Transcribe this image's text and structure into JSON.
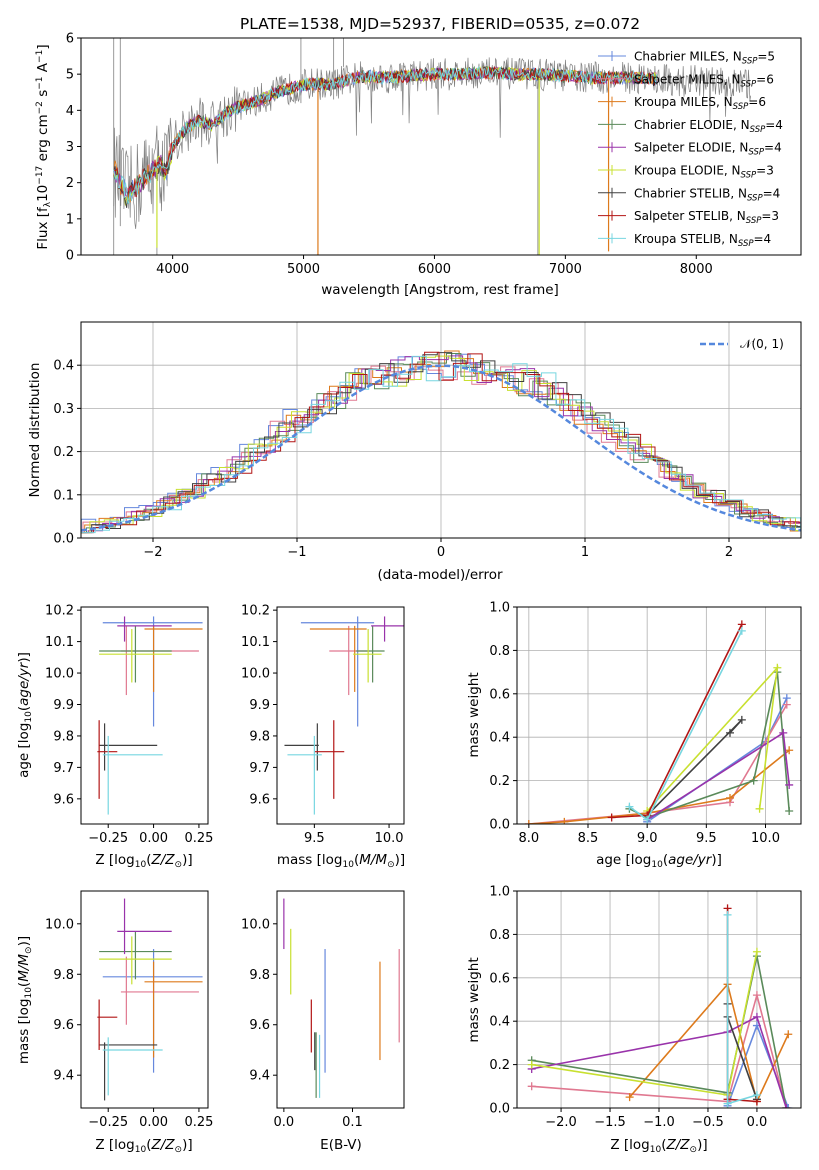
{
  "colors": {
    "Chabrier MILES": "#6688dd",
    "Salpeter MILES": "#e07890",
    "Kroupa MILES": "#dd7a1c",
    "Chabrier ELODIE": "#5a8a5a",
    "Salpeter ELODIE": "#9933aa",
    "Kroupa ELODIE": "#c8e030",
    "Chabrier STELIB": "#404040",
    "Salpeter STELIB": "#b21515",
    "Kroupa STELIB": "#77d6e0",
    "normal": "#5588dd",
    "data": "#808080"
  },
  "legend_main": [
    {
      "name": "Chabrier MILES",
      "nssp": "=5"
    },
    {
      "name": "Salpeter MILES",
      "nssp": "=6"
    },
    {
      "name": "Kroupa MILES",
      "nssp": "=6"
    },
    {
      "name": "Chabrier ELODIE",
      "nssp": "=4"
    },
    {
      "name": "Salpeter ELODIE",
      "nssp": "=4"
    },
    {
      "name": "Kroupa ELODIE",
      "nssp": "=3"
    },
    {
      "name": "Chabrier STELIB",
      "nssp": "=4"
    },
    {
      "name": "Salpeter STELIB",
      "nssp": "=3"
    },
    {
      "name": "Kroupa STELIB",
      "nssp": "=4"
    }
  ],
  "chart_data": [
    {
      "type": "line",
      "title": "PLATE=1538, MJD=52937, FIBERID=0535, z=0.072",
      "xlabel": "wavelength [Angstrom, rest frame]",
      "ylabel": "Flux [f_λ 10^-17 erg cm^-2 s^-1 A^-1]",
      "xlim": [
        3300,
        8800
      ],
      "ylim": [
        0,
        6
      ],
      "xticks": [
        4000,
        5000,
        6000,
        7000,
        8000
      ],
      "yticks": [
        0,
        1,
        2,
        3,
        4,
        5,
        6
      ],
      "spectrum_continuum": [
        [
          3550,
          2.4
        ],
        [
          3650,
          1.6
        ],
        [
          3750,
          2.0
        ],
        [
          3850,
          2.4
        ],
        [
          3900,
          2.5
        ],
        [
          3950,
          2.3
        ],
        [
          4000,
          3.0
        ],
        [
          4100,
          3.5
        ],
        [
          4200,
          3.7
        ],
        [
          4300,
          3.6
        ],
        [
          4400,
          3.9
        ],
        [
          4500,
          4.1
        ],
        [
          4600,
          4.2
        ],
        [
          4700,
          4.35
        ],
        [
          4800,
          4.5
        ],
        [
          4900,
          4.6
        ],
        [
          5000,
          4.7
        ],
        [
          5100,
          4.75
        ],
        [
          5200,
          4.7
        ],
        [
          5300,
          4.8
        ],
        [
          5400,
          4.9
        ],
        [
          5500,
          4.95
        ],
        [
          5600,
          4.9
        ],
        [
          5800,
          4.95
        ],
        [
          6000,
          5.0
        ],
        [
          6200,
          5.0
        ],
        [
          6400,
          5.05
        ],
        [
          6600,
          5.0
        ],
        [
          6800,
          5.0
        ],
        [
          7000,
          4.95
        ],
        [
          7200,
          4.9
        ],
        [
          7400,
          4.9
        ],
        [
          7600,
          4.9
        ],
        [
          7800,
          4.85
        ],
        [
          8000,
          4.8
        ],
        [
          8200,
          4.75
        ],
        [
          8400,
          4.7
        ]
      ]
    },
    {
      "type": "bar",
      "xlabel": "(data-model)/error",
      "ylabel": "Normed distribution",
      "xlim": [
        -2.5,
        2.5
      ],
      "ylim": [
        0,
        0.5
      ],
      "xticks": [
        -2,
        -1,
        0,
        1,
        2
      ],
      "xtick_labels": [
        "−2",
        "−1",
        "0",
        "1",
        "2"
      ],
      "yticks": [
        0.0,
        0.1,
        0.2,
        0.3,
        0.4
      ],
      "legend": "𝒩(0, 1)",
      "hist_base": [
        0.025,
        0.03,
        0.035,
        0.045,
        0.055,
        0.065,
        0.08,
        0.095,
        0.11,
        0.13,
        0.15,
        0.17,
        0.195,
        0.22,
        0.245,
        0.27,
        0.29,
        0.31,
        0.33,
        0.35,
        0.36,
        0.37,
        0.38,
        0.39,
        0.395,
        0.4,
        0.4,
        0.395,
        0.39,
        0.38,
        0.37,
        0.36,
        0.35,
        0.33,
        0.31,
        0.29,
        0.27,
        0.245,
        0.22,
        0.195,
        0.17,
        0.15,
        0.13,
        0.11,
        0.095,
        0.08,
        0.065,
        0.055,
        0.045,
        0.035,
        0.025
      ]
    },
    {
      "type": "scatter",
      "panel": "age vs Z",
      "xlabel": "Z [log10(Z/Z⊙)]",
      "ylabel": "age [log10(age/yr)]",
      "xlim": [
        -0.4,
        0.3
      ],
      "ylim": [
        9.52,
        10.21
      ],
      "xticks": [
        -0.25,
        0.0,
        0.25
      ],
      "xtick_labels": [
        "−0.25",
        "0.00",
        "0.25"
      ],
      "yticks": [
        9.6,
        9.7,
        9.8,
        9.9,
        10.0,
        10.1,
        10.2
      ]
    },
    {
      "type": "scatter",
      "panel": "age vs mass",
      "xlabel": "mass [log10(M/M⊙)]",
      "xlim": [
        9.25,
        10.1
      ],
      "ylim": [
        9.52,
        10.21
      ],
      "xticks": [
        9.5,
        10.0
      ]
    },
    {
      "type": "line",
      "panel": "mass weight vs age",
      "xlabel": "age [log10(age/yr)]",
      "ylabel": "mass weight",
      "xlim": [
        7.9,
        10.3
      ],
      "ylim": [
        0,
        1
      ],
      "xticks": [
        8.0,
        8.5,
        9.0,
        9.5,
        10.0
      ],
      "yticks": [
        0.0,
        0.2,
        0.4,
        0.6,
        0.8,
        1.0
      ]
    },
    {
      "type": "scatter",
      "panel": "mass vs Z",
      "xlabel": "Z [log10(Z/Z⊙)]",
      "ylabel": "mass [log10(M/M⊙)]",
      "xlim": [
        -0.4,
        0.3
      ],
      "ylim": [
        9.27,
        10.13
      ],
      "xticks": [
        -0.25,
        0.0,
        0.25
      ],
      "xtick_labels": [
        "−0.25",
        "0.00",
        "0.25"
      ],
      "yticks": [
        9.4,
        9.6,
        9.8,
        10.0
      ]
    },
    {
      "type": "scatter",
      "panel": "mass vs E(B-V)",
      "xlabel": "E(B-V)",
      "xlim": [
        -0.01,
        0.175
      ],
      "ylim": [
        9.27,
        10.13
      ],
      "xticks": [
        0.0,
        0.1
      ]
    },
    {
      "type": "line",
      "panel": "mass weight vs Z",
      "xlabel": "Z [log10(Z/Z⊙)]",
      "ylabel": "mass weight",
      "xlim": [
        -2.45,
        0.45
      ],
      "ylim": [
        0,
        1
      ],
      "xticks": [
        -2.0,
        -1.5,
        -1.0,
        -0.5,
        0.0
      ],
      "xtick_labels": [
        "−2.0",
        "−1.5",
        "−1.0",
        "−0.5",
        "0.0"
      ],
      "yticks": [
        0.0,
        0.2,
        0.4,
        0.6,
        0.8,
        1.0
      ]
    }
  ],
  "models": [
    {
      "name": "Chabrier MILES",
      "z": 0.0,
      "zlo": -0.28,
      "zhi": 0.27,
      "age": 10.16,
      "agelo": 9.83,
      "agehi": 10.18,
      "mass": 9.79,
      "masslo": 9.41,
      "masshi": 9.9,
      "ebv": 0.06,
      "ebvlo": 9.41,
      "ebvhi": 9.9,
      "mw_age": [
        [
          9.0,
          0.01
        ],
        [
          10.0,
          0.38
        ],
        [
          10.18,
          0.58
        ]
      ],
      "mw_z": [
        [
          -0.3,
          0.01
        ],
        [
          0.0,
          0.38
        ],
        [
          0.32,
          0.0
        ]
      ]
    },
    {
      "name": "Salpeter MILES",
      "z": -0.15,
      "zlo": -0.18,
      "zhi": 0.25,
      "age": 10.07,
      "agelo": 9.93,
      "agehi": 10.15,
      "mass": 9.73,
      "masslo": 9.6,
      "masshi": 9.87,
      "ebv": 0.168,
      "ebvlo": 9.53,
      "ebvhi": 9.9,
      "mw_age": [
        [
          8.0,
          0.0
        ],
        [
          9.0,
          0.05
        ],
        [
          9.7,
          0.1
        ],
        [
          10.18,
          0.55
        ]
      ],
      "mw_z": [
        [
          -2.3,
          0.1
        ],
        [
          -0.3,
          0.03
        ],
        [
          0.0,
          0.52
        ],
        [
          0.3,
          0.0
        ]
      ]
    },
    {
      "name": "Kroupa MILES",
      "z": 0.0,
      "zlo": -0.05,
      "zhi": 0.27,
      "age": 10.14,
      "agelo": 9.94,
      "agehi": 10.15,
      "mass": 9.77,
      "masslo": 9.47,
      "masshi": 9.85,
      "ebv": 0.14,
      "ebvlo": 9.46,
      "ebvhi": 9.85,
      "mw_age": [
        [
          8.0,
          0.0
        ],
        [
          8.3,
          0.01
        ],
        [
          9.0,
          0.05
        ],
        [
          9.7,
          0.12
        ],
        [
          10.2,
          0.34
        ]
      ],
      "mw_z": [
        [
          -1.3,
          0.05
        ],
        [
          -0.3,
          0.57
        ],
        [
          0.0,
          0.03
        ],
        [
          0.32,
          0.34
        ]
      ]
    },
    {
      "name": "Chabrier ELODIE",
      "z": -0.1,
      "zlo": -0.3,
      "zhi": 0.1,
      "age": 10.07,
      "agelo": 9.97,
      "agehi": 10.15,
      "mass": 9.89,
      "masslo": 9.78,
      "masshi": 9.97,
      "ebv": 0.047,
      "ebvlo": 9.31,
      "ebvhi": 9.57,
      "mw_age": [
        [
          8.85,
          0.07
        ],
        [
          9.0,
          0.03
        ],
        [
          9.9,
          0.2
        ],
        [
          10.1,
          0.7
        ],
        [
          10.2,
          0.06
        ]
      ],
      "mw_z": [
        [
          -2.3,
          0.22
        ],
        [
          -0.3,
          0.07
        ],
        [
          0.0,
          0.7
        ],
        [
          0.3,
          0.0
        ]
      ]
    },
    {
      "name": "Salpeter ELODIE",
      "z": -0.16,
      "zlo": -0.2,
      "zhi": 0.1,
      "age": 10.15,
      "agelo": 10.1,
      "agehi": 10.18,
      "mass": 9.97,
      "masslo": 9.88,
      "masshi": 10.1,
      "ebv": 0.0,
      "ebvlo": 9.9,
      "ebvhi": 10.1,
      "mw_age": [
        [
          9.0,
          0.02
        ],
        [
          10.15,
          0.42
        ],
        [
          10.2,
          0.18
        ]
      ],
      "mw_z": [
        [
          -2.3,
          0.18
        ],
        [
          -0.3,
          0.35
        ],
        [
          0.0,
          0.42
        ],
        [
          0.3,
          0.0
        ]
      ]
    },
    {
      "name": "Kroupa ELODIE",
      "z": -0.12,
      "zlo": -0.3,
      "zhi": 0.1,
      "age": 10.06,
      "agelo": 9.97,
      "agehi": 10.14,
      "mass": 9.86,
      "masslo": 9.76,
      "masshi": 9.95,
      "ebv": 0.01,
      "ebvlo": 9.72,
      "ebvhi": 9.98,
      "mw_age": [
        [
          9.0,
          0.06
        ],
        [
          10.1,
          0.72
        ],
        [
          9.95,
          0.07
        ]
      ],
      "mw_z": [
        [
          -2.3,
          0.2
        ],
        [
          -0.3,
          0.06
        ],
        [
          0.0,
          0.72
        ]
      ]
    },
    {
      "name": "Chabrier STELIB",
      "z": -0.27,
      "zlo": -0.3,
      "zhi": 0.02,
      "age": 9.77,
      "agelo": 9.69,
      "agehi": 9.84,
      "mass": 9.52,
      "masslo": 9.3,
      "masshi": 9.53,
      "ebv": 0.045,
      "ebvlo": 9.42,
      "ebvhi": 9.57,
      "mw_age": [
        [
          9.0,
          0.04
        ],
        [
          9.8,
          0.48
        ],
        [
          9.7,
          0.42
        ]
      ],
      "mw_z": [
        [
          -0.3,
          0.48
        ],
        [
          -0.3,
          0.42
        ],
        [
          0.0,
          0.04
        ]
      ]
    },
    {
      "name": "Salpeter STELIB",
      "z": -0.3,
      "zlo": -0.31,
      "zhi": -0.2,
      "age": 9.75,
      "agelo": 9.6,
      "agehi": 9.85,
      "mass": 9.63,
      "masslo": 9.5,
      "masshi": 9.7,
      "ebv": 0.04,
      "ebvlo": 9.49,
      "ebvhi": 9.7,
      "mw_age": [
        [
          8.7,
          0.03
        ],
        [
          9.0,
          0.04
        ],
        [
          9.8,
          0.92
        ]
      ],
      "mw_z": [
        [
          -0.3,
          0.92
        ],
        [
          -0.3,
          0.04
        ],
        [
          0.0,
          0.03
        ]
      ]
    },
    {
      "name": "Kroupa STELIB",
      "z": -0.25,
      "zlo": -0.28,
      "zhi": 0.05,
      "age": 9.74,
      "agelo": 9.55,
      "agehi": 9.8,
      "mass": 9.5,
      "masslo": 9.32,
      "masshi": 9.55,
      "ebv": 0.052,
      "ebvlo": 9.31,
      "ebvhi": 9.56,
      "mw_age": [
        [
          8.85,
          0.08
        ],
        [
          9.0,
          0.02
        ],
        [
          9.8,
          0.89
        ]
      ],
      "mw_z": [
        [
          -0.3,
          0.89
        ],
        [
          -0.3,
          0.02
        ],
        [
          0.0,
          0.06
        ]
      ]
    }
  ]
}
